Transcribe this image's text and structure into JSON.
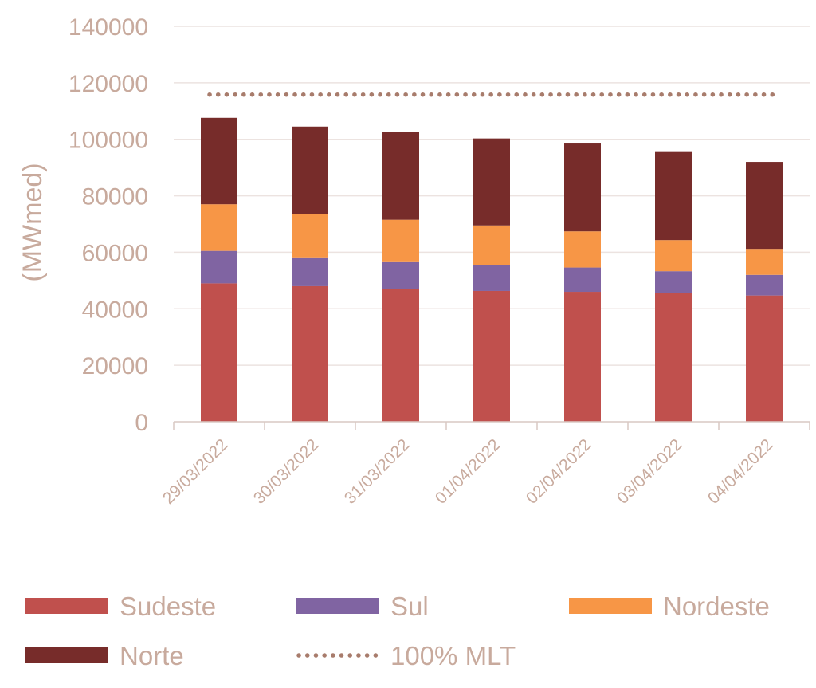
{
  "chart_data": {
    "type": "bar",
    "stacked": true,
    "categories": [
      "29/03/2022",
      "30/03/2022",
      "31/03/2022",
      "01/04/2022",
      "02/04/2022",
      "03/04/2022",
      "04/04/2022"
    ],
    "series": [
      {
        "name": "Sudeste",
        "color": "#c0504d",
        "values": [
          49000,
          48000,
          47000,
          46300,
          46000,
          45700,
          44700
        ]
      },
      {
        "name": "Sul",
        "color": "#8064a2",
        "values": [
          11500,
          10200,
          9500,
          9200,
          8600,
          7600,
          7300
        ]
      },
      {
        "name": "Nordeste",
        "color": "#f79646",
        "values": [
          16500,
          15300,
          15000,
          14000,
          12800,
          11000,
          9200
        ]
      },
      {
        "name": "Norte",
        "color": "#772c2a",
        "values": [
          30600,
          31000,
          31000,
          30800,
          31100,
          31200,
          30800
        ]
      }
    ],
    "reference_line": {
      "name": "100% MLT",
      "color": "#a87c6c",
      "value": 115800,
      "style": "dotted"
    },
    "ylabel": "(MWmed)",
    "xlabel": "",
    "ylim": [
      0,
      140000
    ],
    "yticks": [
      "0",
      "20000",
      "40000",
      "60000",
      "80000",
      "100000",
      "120000",
      "140000"
    ],
    "grid": "horizontal",
    "legend_position": "bottom"
  }
}
